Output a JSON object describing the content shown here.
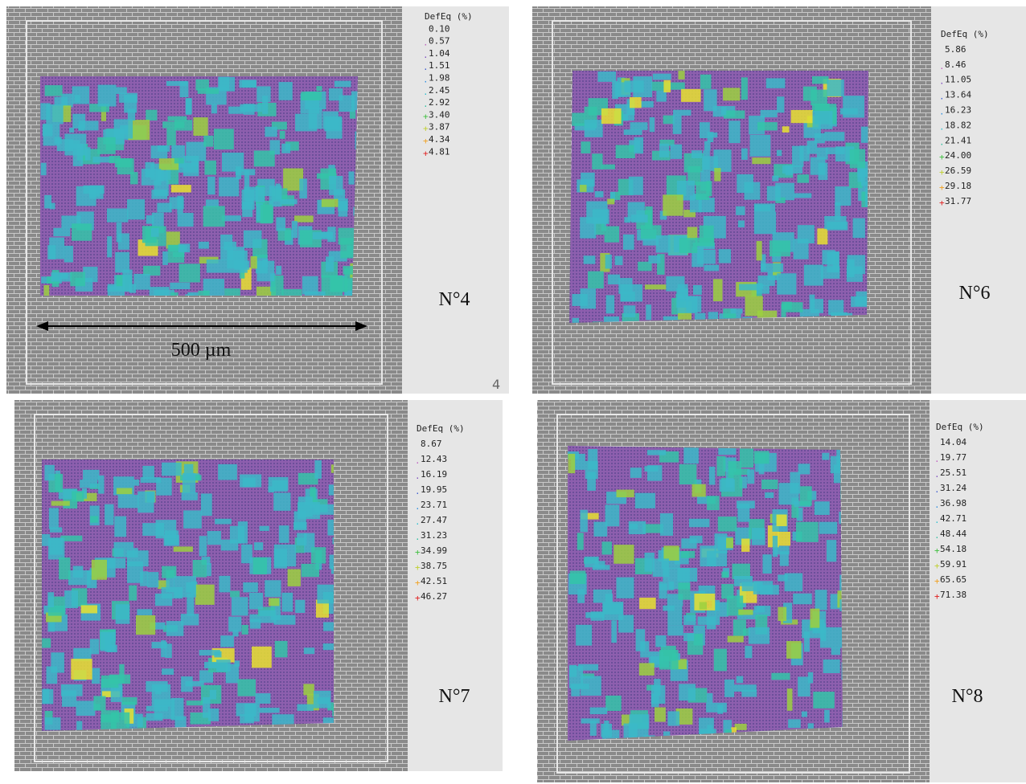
{
  "panels": [
    {
      "legend_title": "DefEq (%)",
      "legend_values": [
        "0.10",
        "0.57",
        "1.04",
        "1.51",
        "1.98",
        "2.45",
        "2.92",
        "3.40",
        "3.87",
        "4.34",
        "4.81"
      ],
      "label": "N°4",
      "scale_bar": "500 µm",
      "corner_mark": "4"
    },
    {
      "legend_title": "DefEq (%)",
      "legend_values": [
        "5.86",
        "8.46",
        "11.05",
        "13.64",
        "16.23",
        "18.82",
        "21.41",
        "24.00",
        "26.59",
        "29.18",
        "31.77"
      ],
      "label": "N°6"
    },
    {
      "legend_title": "DefEq (%)",
      "legend_values": [
        "8.67",
        "12.43",
        "16.19",
        "19.95",
        "23.71",
        "27.47",
        "31.23",
        "34.99",
        "38.75",
        "42.51",
        "46.27"
      ],
      "label": "N°7"
    },
    {
      "legend_title": "DefEq (%)",
      "legend_values": [
        "14.04",
        "19.77",
        "25.51",
        "31.24",
        "36.98",
        "42.71",
        "48.44",
        "54.18",
        "59.91",
        "65.65",
        "71.38"
      ],
      "label": "N°8"
    }
  ]
}
